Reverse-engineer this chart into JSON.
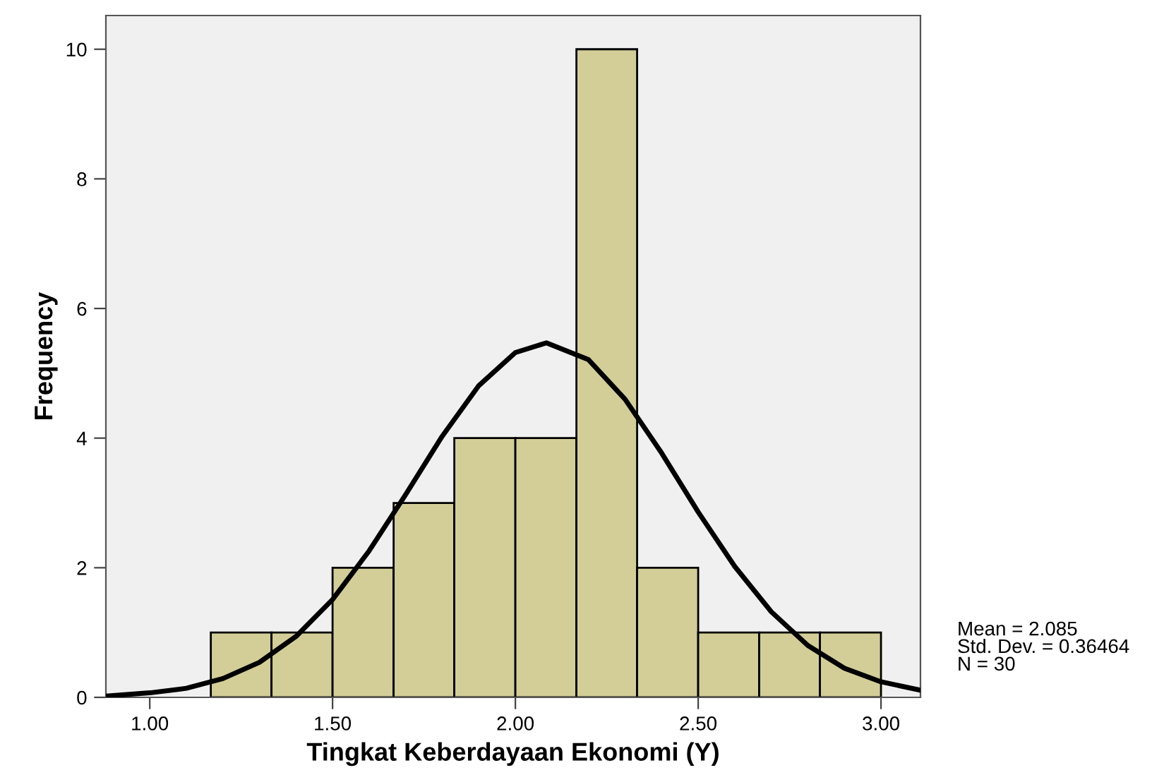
{
  "chart_data": {
    "type": "histogram",
    "xlabel": "Tingkat Keberdayaan Ekonomi (Y)",
    "ylabel": "Frequency",
    "bins": [
      1.167,
      1.333,
      1.5,
      1.667,
      1.833,
      2.0,
      2.167,
      2.333,
      2.5,
      2.667,
      2.833,
      3.0
    ],
    "values": [
      1,
      1,
      2,
      3,
      4,
      4,
      10,
      2,
      1,
      1,
      1
    ],
    "color": "#d3ce97",
    "series": [
      {
        "type": "line",
        "color": "#000000",
        "x": [
          0.88,
          1.0,
          1.1,
          1.2,
          1.3,
          1.4,
          1.5,
          1.6,
          1.7,
          1.8,
          1.9,
          2.0,
          2.085,
          2.2,
          2.3,
          2.4,
          2.5,
          2.6,
          2.7,
          2.8,
          2.9,
          3.0,
          3.108
        ],
        "values": [
          0.02,
          0.07,
          0.14,
          0.29,
          0.54,
          0.94,
          1.51,
          2.26,
          3.13,
          4.03,
          4.81,
          5.32,
          5.47,
          5.21,
          4.6,
          3.77,
          2.86,
          2.02,
          1.32,
          0.8,
          0.45,
          0.24,
          0.11
        ]
      }
    ],
    "xlim": [
      0.88,
      3.108
    ],
    "ylim": [
      0,
      10.52
    ],
    "xticks": [
      {
        "value": 1.0,
        "label": "1.00"
      },
      {
        "value": 1.5,
        "label": "1.50"
      },
      {
        "value": 2.0,
        "label": "2.00"
      },
      {
        "value": 2.5,
        "label": "2.50"
      },
      {
        "value": 3.0,
        "label": "3.00"
      }
    ],
    "yticks": [
      0,
      2,
      4,
      6,
      8,
      10
    ],
    "annotations": [
      "Mean = 2.085\nStd. Dev. = 0.36464\nN = 30"
    ],
    "grid": false,
    "legend": false
  }
}
